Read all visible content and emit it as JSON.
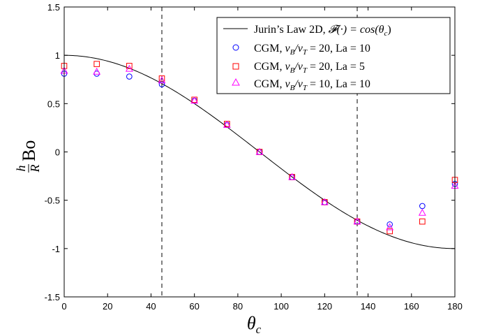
{
  "chart_data": {
    "type": "line",
    "xlabel": "θ_c",
    "ylabel": "h/R Bo",
    "xlim": [
      0,
      180
    ],
    "ylim": [
      -1.5,
      1.5
    ],
    "x_ticks": [
      "0",
      "20",
      "40",
      "60",
      "80",
      "100",
      "120",
      "140",
      "160",
      "180"
    ],
    "y_ticks": [
      "1.5",
      "1",
      "0.5",
      "0",
      "-0.5",
      "-1",
      "-1.5"
    ],
    "vlines": [
      45,
      135
    ],
    "legend_position": "top-right",
    "series": [
      {
        "name": "Jurin's Law 2D, 𝓕(·) = cos(θ_c)",
        "type": "line",
        "function": "cos",
        "x_range": [
          0,
          180
        ],
        "color": "#000000"
      },
      {
        "name": "CGM, ν_B/ν_T = 20, La = 10",
        "type": "scatter",
        "marker": "circle",
        "color": "#0000ff",
        "x": [
          0,
          15,
          30,
          45,
          60,
          75,
          90,
          105,
          120,
          135,
          150,
          165,
          180
        ],
        "y": [
          0.81,
          0.81,
          0.78,
          0.7,
          0.53,
          0.28,
          0.0,
          -0.26,
          -0.52,
          -0.72,
          -0.75,
          -0.56,
          -0.33
        ]
      },
      {
        "name": "CGM, ν_B/ν_T = 20, La = 5",
        "type": "scatter",
        "marker": "square",
        "color": "#ff0000",
        "x": [
          0,
          15,
          30,
          45,
          60,
          75,
          90,
          105,
          120,
          135,
          150,
          165,
          180
        ],
        "y": [
          0.89,
          0.91,
          0.89,
          0.76,
          0.54,
          0.29,
          0.0,
          -0.26,
          -0.52,
          -0.72,
          -0.82,
          -0.72,
          -0.29
        ]
      },
      {
        "name": "CGM, ν_B/ν_T = 10, La = 10",
        "type": "scatter",
        "marker": "triangle",
        "color": "#ff00ff",
        "x": [
          0,
          15,
          30,
          45,
          60,
          75,
          90,
          105,
          120,
          135,
          150,
          165,
          180
        ],
        "y": [
          0.84,
          0.83,
          0.86,
          0.74,
          0.53,
          0.28,
          0.0,
          -0.26,
          -0.52,
          -0.72,
          -0.78,
          -0.63,
          -0.35
        ]
      }
    ]
  },
  "legend": {
    "entries": [
      {
        "prefix": "Jurin’s Law 2D, ",
        "math": "𝓕(·) = cos(θ",
        "sub": "c",
        "suffix": ")"
      },
      {
        "prefix": "CGM, ",
        "math": "ν",
        "sub": "B",
        "mid": "/ν",
        "sub2": "T",
        "suffix": " = 20, La = 10"
      },
      {
        "prefix": "CGM, ",
        "math": "ν",
        "sub": "B",
        "mid": "/ν",
        "sub2": "T",
        "suffix": " = 20, La = 5"
      },
      {
        "prefix": "CGM, ",
        "math": "ν",
        "sub": "B",
        "mid": "/ν",
        "sub2": "T",
        "suffix": " = 10, La = 10"
      }
    ]
  },
  "axis_titles": {
    "x_main": "θ",
    "x_sub": "c",
    "y_frac_num": "h",
    "y_frac_den": "R",
    "y_main": "Bo"
  }
}
